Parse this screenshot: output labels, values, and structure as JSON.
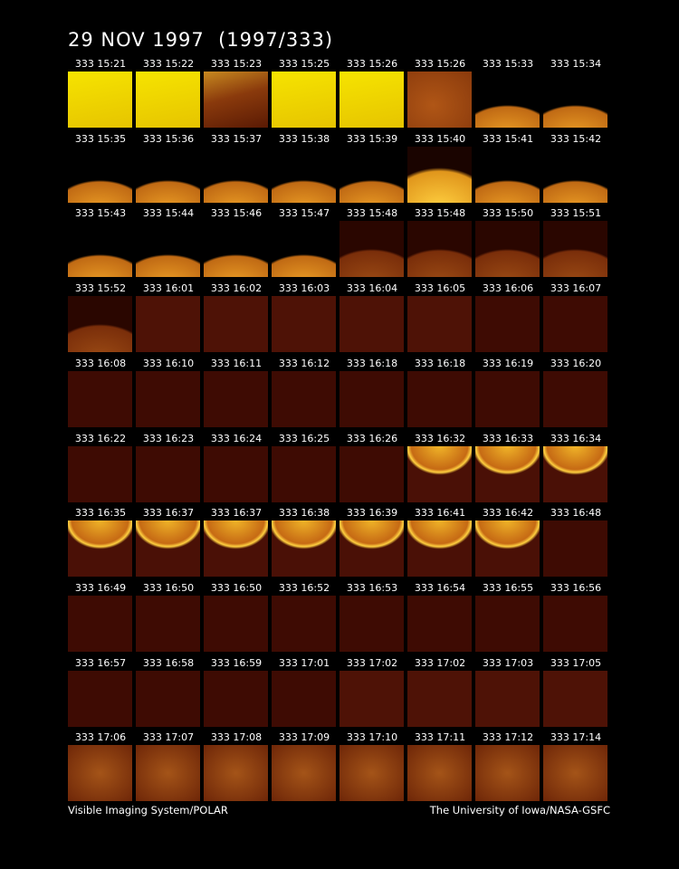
{
  "header": {
    "title": "29 NOV 1997  (1997/333)"
  },
  "frames": [
    [
      "333 15:21",
      "333 15:22",
      "333 15:23",
      "333 15:25",
      "333 15:26",
      "333 15:26",
      "333 15:33",
      "333 15:34"
    ],
    [
      "333 15:35",
      "333 15:36",
      "333 15:37",
      "333 15:38",
      "333 15:39",
      "333 15:40",
      "333 15:41",
      "333 15:42"
    ],
    [
      "333 15:43",
      "333 15:44",
      "333 15:46",
      "333 15:47",
      "333 15:48",
      "333 15:48",
      "333 15:50",
      "333 15:51"
    ],
    [
      "333 15:52",
      "333 16:01",
      "333 16:02",
      "333 16:03",
      "333 16:04",
      "333 16:05",
      "333 16:06",
      "333 16:07"
    ],
    [
      "333 16:08",
      "333 16:10",
      "333 16:11",
      "333 16:12",
      "333 16:18",
      "333 16:18",
      "333 16:19",
      "333 16:20"
    ],
    [
      "333 16:22",
      "333 16:23",
      "333 16:24",
      "333 16:25",
      "333 16:26",
      "333 16:32",
      "333 16:33",
      "333 16:34"
    ],
    [
      "333 16:35",
      "333 16:37",
      "333 16:37",
      "333 16:38",
      "333 16:39",
      "333 16:41",
      "333 16:42",
      "333 16:48"
    ],
    [
      "333 16:49",
      "333 16:50",
      "333 16:50",
      "333 16:52",
      "333 16:53",
      "333 16:54",
      "333 16:55",
      "333 16:56"
    ],
    [
      "333 16:57",
      "333 16:58",
      "333 16:59",
      "333 17:01",
      "333 17:02",
      "333 17:02",
      "333 17:03",
      "333 17:05"
    ],
    [
      "333 17:06",
      "333 17:07",
      "333 17:08",
      "333 17:09",
      "333 17:10",
      "333 17:11",
      "333 17:12",
      "333 17:14"
    ]
  ],
  "footer": {
    "left": "Visible Imaging System/POLAR",
    "right": "The University of Iowa/NASA-GSFC"
  }
}
